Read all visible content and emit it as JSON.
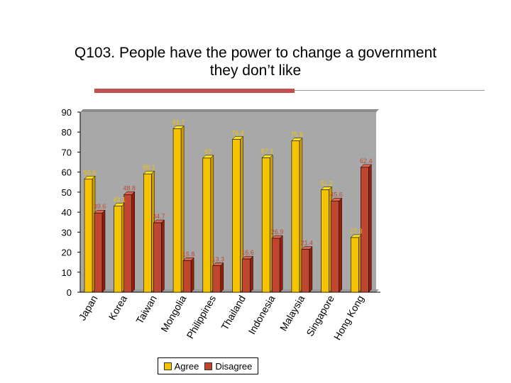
{
  "title": "Q103. People have the power to change a government\nthey don’t like",
  "colors": {
    "agree": "#f5c400",
    "disagree": "#c0472f",
    "plot_bg": "#a8a8a8",
    "rule_accent": "#c0504d"
  },
  "chart_data": {
    "type": "bar",
    "categories": [
      "Japan",
      "Korea",
      "Taiwan",
      "Mongolia",
      "Philippines",
      "Thailand",
      "Indonesia",
      "Malaysia",
      "Singapore",
      "Hong Kong"
    ],
    "series": [
      {
        "name": "Agree",
        "values": [
          56.6,
          43.1,
          59.1,
          81.7,
          67,
          76.4,
          67.1,
          75.6,
          51.2,
          27.3
        ]
      },
      {
        "name": "Disagree",
        "values": [
          39.6,
          48.8,
          34.7,
          15.8,
          13.3,
          16.6,
          26.9,
          21.4,
          45.6,
          62.4
        ]
      }
    ],
    "data_labels": [
      [
        "56.6",
        "43.1",
        "59.1",
        "81.7",
        "67",
        "76.4",
        "67.1",
        "75.6",
        "51.2",
        "27.3"
      ],
      [
        "39.6",
        "48.8",
        "34.7",
        "15.8",
        "13.3",
        "16.6",
        "26.9",
        "21.4",
        "45.6",
        "62.4"
      ]
    ],
    "y_ticks": [
      "0",
      "10",
      "20",
      "30",
      "40",
      "50",
      "60",
      "70",
      "80",
      "90"
    ],
    "ylim": [
      0,
      90
    ],
    "grid": false,
    "legend_position": "bottom"
  }
}
